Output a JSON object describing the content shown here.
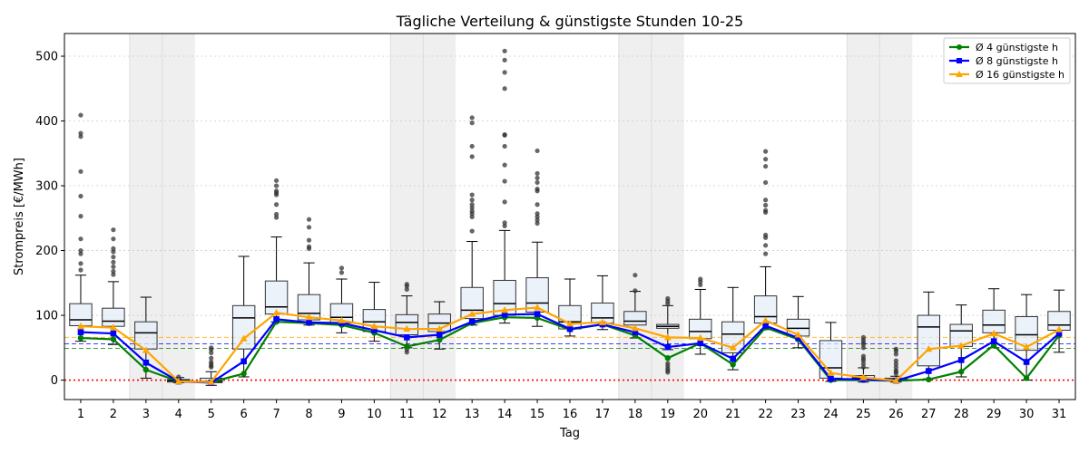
{
  "chart_data": {
    "type": "box",
    "title": "Tägliche Verteilung & günstigste Stunden 10-25",
    "xlabel": "Tag",
    "ylabel": "Strompreis [€/MWh]",
    "ylim": [
      -30,
      535
    ],
    "yticks": [
      0,
      100,
      200,
      300,
      400,
      500
    ],
    "categories": [
      "1",
      "2",
      "3",
      "4",
      "5",
      "6",
      "7",
      "8",
      "9",
      "10",
      "11",
      "12",
      "13",
      "14",
      "15",
      "16",
      "17",
      "18",
      "19",
      "20",
      "21",
      "22",
      "23",
      "24",
      "25",
      "26",
      "27",
      "28",
      "29",
      "30",
      "31"
    ],
    "weekend_days": [
      3,
      4,
      11,
      12,
      18,
      19,
      25,
      26
    ],
    "grid": "horizontal dotted",
    "legend_position": "top-right",
    "boxes": [
      {
        "whislo": 60,
        "q1": 84,
        "med": 93,
        "q3": 118,
        "whishi": 162,
        "fliers": [
          170,
          180,
          195,
          200,
          218,
          253,
          284,
          322,
          376,
          381,
          409
        ]
      },
      {
        "whislo": 55,
        "q1": 83,
        "med": 91,
        "q3": 111,
        "whishi": 152,
        "fliers": [
          163,
          168,
          175,
          182,
          190,
          198,
          203,
          218,
          232
        ]
      },
      {
        "whislo": 3,
        "q1": 48,
        "med": 73,
        "q3": 90,
        "whishi": 128,
        "fliers": []
      },
      {
        "whislo": -4,
        "q1": -3,
        "med": -1,
        "q3": 1,
        "whishi": 4,
        "fliers": [
          5
        ]
      },
      {
        "whislo": -8,
        "q1": -4,
        "med": -2,
        "q3": 3,
        "whishi": 13,
        "fliers": [
          20,
          22,
          25,
          28,
          34,
          42,
          47,
          50
        ]
      },
      {
        "whislo": 5,
        "q1": 48,
        "med": 96,
        "q3": 115,
        "whishi": 191,
        "fliers": []
      },
      {
        "whislo": 90,
        "q1": 102,
        "med": 113,
        "q3": 153,
        "whishi": 221,
        "fliers": [
          251,
          256,
          271,
          286,
          289,
          292,
          300,
          308
        ]
      },
      {
        "whislo": 85,
        "q1": 93,
        "med": 103,
        "q3": 132,
        "whishi": 181,
        "fliers": [
          203,
          206,
          216,
          236,
          248
        ]
      },
      {
        "whislo": 73,
        "q1": 88,
        "med": 97,
        "q3": 118,
        "whishi": 156,
        "fliers": [
          166,
          173
        ]
      },
      {
        "whislo": 60,
        "q1": 75,
        "med": 90,
        "q3": 109,
        "whishi": 151,
        "fliers": []
      },
      {
        "whislo": 50,
        "q1": 70,
        "med": 89,
        "q3": 101,
        "whishi": 130,
        "fliers": [
          43,
          47,
          140,
          145,
          148
        ]
      },
      {
        "whislo": 48,
        "q1": 75,
        "med": 88,
        "q3": 102,
        "whishi": 121,
        "fliers": []
      },
      {
        "whislo": 85,
        "q1": 95,
        "med": 108,
        "q3": 143,
        "whishi": 214,
        "fliers": [
          230,
          252,
          257,
          261,
          266,
          271,
          278,
          286,
          345,
          361,
          397,
          405
        ]
      },
      {
        "whislo": 88,
        "q1": 100,
        "med": 118,
        "q3": 154,
        "whishi": 231,
        "fliers": [
          238,
          243,
          275,
          307,
          332,
          361,
          378,
          379,
          450,
          475,
          494,
          508
        ]
      },
      {
        "whislo": 83,
        "q1": 105,
        "med": 119,
        "q3": 158,
        "whishi": 213,
        "fliers": [
          242,
          247,
          252,
          257,
          271,
          292,
          295,
          305,
          312,
          319,
          354
        ]
      },
      {
        "whislo": 68,
        "q1": 79,
        "med": 90,
        "q3": 115,
        "whishi": 156,
        "fliers": []
      },
      {
        "whislo": 78,
        "q1": 88,
        "med": 96,
        "q3": 119,
        "whishi": 161,
        "fliers": []
      },
      {
        "whislo": 65,
        "q1": 85,
        "med": 91,
        "q3": 106,
        "whishi": 137,
        "fliers": [
          138,
          162
        ]
      },
      {
        "whislo": 47,
        "q1": 80,
        "med": 83,
        "q3": 86,
        "whishi": 115,
        "fliers": [
          12,
          15,
          18,
          22,
          26,
          118,
          122,
          126
        ]
      },
      {
        "whislo": 40,
        "q1": 64,
        "med": 75,
        "q3": 94,
        "whishi": 140,
        "fliers": [
          147,
          152,
          156
        ]
      },
      {
        "whislo": 16,
        "q1": 42,
        "med": 71,
        "q3": 90,
        "whishi": 143,
        "fliers": []
      },
      {
        "whislo": 78,
        "q1": 88,
        "med": 98,
        "q3": 130,
        "whishi": 175,
        "fliers": [
          195,
          208,
          220,
          224,
          259,
          262,
          270,
          278,
          305,
          330,
          341,
          353
        ]
      },
      {
        "whislo": 50,
        "q1": 68,
        "med": 80,
        "q3": 94,
        "whishi": 129,
        "fliers": []
      },
      {
        "whislo": -2,
        "q1": 3,
        "med": 19,
        "q3": 61,
        "whishi": 89,
        "fliers": []
      },
      {
        "whislo": -3,
        "q1": 0,
        "med": 3,
        "q3": 7,
        "whishi": 19,
        "fliers": [
          20,
          25,
          30,
          33,
          37,
          50,
          55,
          58,
          62,
          66
        ]
      },
      {
        "whislo": -3,
        "q1": -1,
        "med": 1,
        "q3": 3,
        "whishi": 6,
        "fliers": [
          10,
          13,
          15,
          20,
          25,
          30,
          40,
          45,
          48
        ]
      },
      {
        "whislo": 2,
        "q1": 22,
        "med": 82,
        "q3": 100,
        "whishi": 136,
        "fliers": []
      },
      {
        "whislo": 5,
        "q1": 52,
        "med": 76,
        "q3": 86,
        "whishi": 116,
        "fliers": []
      },
      {
        "whislo": 50,
        "q1": 73,
        "med": 85,
        "q3": 108,
        "whishi": 141,
        "fliers": []
      },
      {
        "whislo": 0,
        "q1": 46,
        "med": 70,
        "q3": 98,
        "whishi": 132,
        "fliers": []
      },
      {
        "whislo": 43,
        "q1": 77,
        "med": 85,
        "q3": 106,
        "whishi": 139,
        "fliers": []
      }
    ],
    "series": [
      {
        "name": "Ø 4 günstigste h",
        "color": "#008000",
        "marker": "circle",
        "values": [
          65,
          63,
          16,
          -2,
          -3,
          10,
          90,
          88,
          85,
          73,
          52,
          62,
          88,
          97,
          96,
          78,
          86,
          69,
          34,
          57,
          24,
          81,
          63,
          0,
          0,
          -1,
          1,
          13,
          54,
          3,
          69
        ]
      },
      {
        "name": "Ø 8 günstigste h",
        "color": "#0000ff",
        "marker": "square",
        "values": [
          74,
          72,
          27,
          -2,
          -4,
          29,
          94,
          89,
          88,
          77,
          66,
          70,
          90,
          101,
          102,
          79,
          86,
          74,
          51,
          57,
          33,
          84,
          65,
          2,
          1,
          -1,
          14,
          31,
          60,
          28,
          72
        ]
      },
      {
        "name": "Ø 16 günstigste h",
        "color": "#ffa500",
        "marker": "triangle",
        "values": [
          83,
          81,
          46,
          -2,
          -3,
          64,
          104,
          97,
          92,
          83,
          79,
          79,
          102,
          108,
          112,
          87,
          89,
          80,
          66,
          65,
          50,
          92,
          70,
          11,
          4,
          -1,
          48,
          53,
          72,
          51,
          78
        ]
      }
    ],
    "reference_lines": [
      {
        "value": 66,
        "color": "#ffa500",
        "style": "dashed"
      },
      {
        "value": 56,
        "color": "#0000ff",
        "style": "dashed"
      },
      {
        "value": 49,
        "color": "#008000",
        "style": "dashed"
      },
      {
        "value": 0,
        "color": "#ff0000",
        "style": "dotted"
      }
    ]
  }
}
